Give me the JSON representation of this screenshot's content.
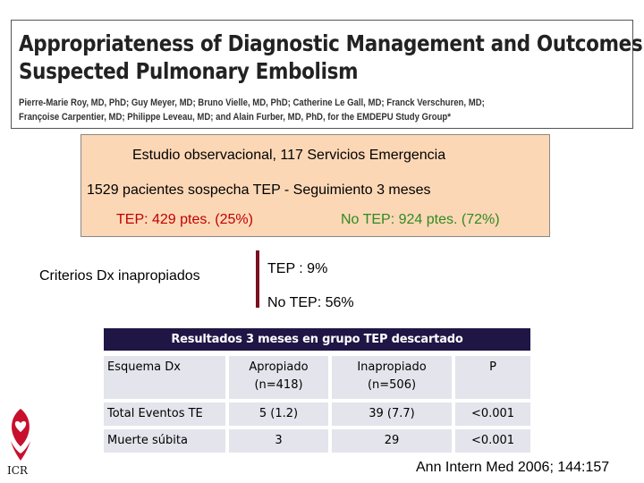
{
  "paper": {
    "title_line1": "Appropriateness of Diagnostic Management and Outcomes of",
    "title_line2": "Suspected Pulmonary Embolism",
    "authors_line1": "Pierre-Marie Roy, MD, PhD; Guy Meyer, MD; Bruno Vielle, MD, PhD; Catherine Le Gall, MD; Franck Verschuren, MD;",
    "authors_line2": "Françoise Carpentier, MD; Philippe Leveau, MD; and Alain Furber, MD, PhD, for the EMDEPU Study Group*"
  },
  "study": {
    "line1": "Estudio observacional, 117 Servicios Emergencia",
    "line2": "1529 pacientes sospecha TEP - Seguimiento 3 meses",
    "tep": "TEP:  429 ptes. (25%)",
    "no_tep": "No TEP: 924 ptes. (72%)"
  },
  "criteria": {
    "label": "Criterios Dx inapropiados",
    "tep": "TEP : 9%",
    "no_tep": "No TEP: 56%"
  },
  "results": {
    "caption": "Resultados 3 meses en grupo  TEP descartado",
    "header": {
      "col1": "Esquema Dx",
      "col2_line1": "Apropiado",
      "col2_line2": "(n=418)",
      "col3_line1": "Inapropiado",
      "col3_line2": "(n=506)",
      "col4": "P"
    },
    "rows": [
      {
        "label": "Total Eventos TE",
        "apropiado": "5 (1.2)",
        "inapropiado": "39 (7.7)",
        "p": "<0.001"
      },
      {
        "label": "Muerte súbita",
        "apropiado": "3",
        "inapropiado": "29",
        "p": "<0.001"
      }
    ]
  },
  "logo": {
    "text": "ICR",
    "icon": "heart-hands-logo",
    "color": "#c8102e"
  },
  "citation": "Ann Intern Med 2006; 144:157",
  "colors": {
    "study_box_bg": "#fcd7b6",
    "tep_red": "#c00000",
    "no_tep_green": "#2e8b22",
    "caption_bg": "#1f1646",
    "cell_bg": "#e4e4ec",
    "divider": "#7a1020"
  }
}
